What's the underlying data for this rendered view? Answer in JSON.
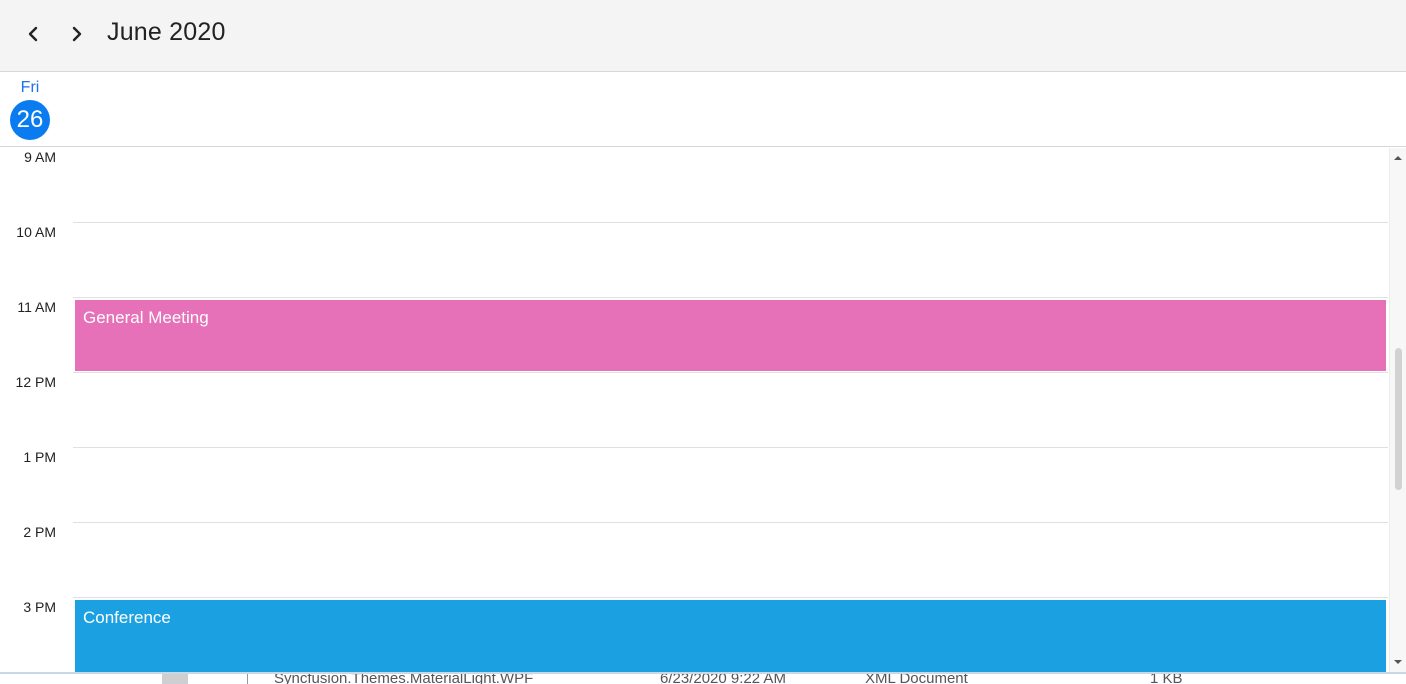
{
  "header": {
    "title": "June 2020",
    "prev_icon": "chevron-left-icon",
    "next_icon": "chevron-right-icon"
  },
  "day": {
    "name": "Fri",
    "number": "26"
  },
  "time_labels": [
    "9 AM",
    "10 AM",
    "11 AM",
    "12 PM",
    "1 PM",
    "2 PM",
    "3 PM"
  ],
  "appointments": [
    {
      "subject": "General Meeting",
      "color": "#e671b8"
    },
    {
      "subject": "Conference",
      "color": "#1ba1e2"
    }
  ],
  "background_row": {
    "name": "Syncfusion.Themes.MaterialLight.WPF",
    "modified": "6/23/2020 9:22 AM",
    "type": "XML Document",
    "size": "1 KB"
  },
  "colors": {
    "accent": "#0a7cf0",
    "header_bg": "#f4f4f4"
  }
}
